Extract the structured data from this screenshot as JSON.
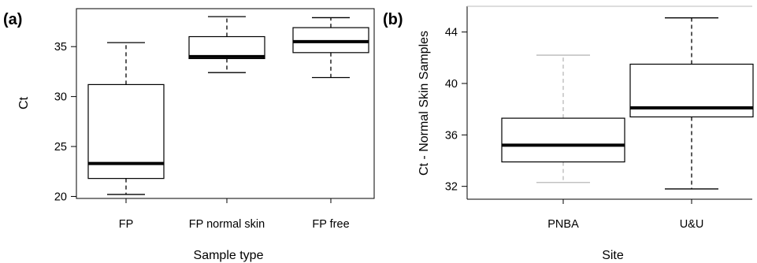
{
  "chart_data": [
    {
      "type": "boxplot",
      "panel_label": "(a)",
      "xlabel": "Sample type",
      "ylabel": "Ct",
      "ylim": [
        19.8,
        38.8
      ],
      "yticks": [
        20,
        25,
        30,
        35
      ],
      "categories": [
        "FP",
        "FP normal skin",
        "FP free"
      ],
      "boxes": [
        {
          "category": "FP",
          "whisker_low": 20.2,
          "q1": 21.8,
          "median": 23.3,
          "q3": 31.2,
          "whisker_high": 35.4
        },
        {
          "category": "FP normal skin",
          "whisker_low": 32.4,
          "q1": 33.8,
          "median": 34.0,
          "q3": 36.0,
          "whisker_high": 38.0
        },
        {
          "category": "FP free",
          "whisker_low": 31.9,
          "q1": 34.4,
          "median": 35.5,
          "q3": 36.9,
          "whisker_high": 37.9
        }
      ]
    },
    {
      "type": "boxplot",
      "panel_label": "(b)",
      "xlabel": "Site",
      "ylabel": "Ct - Normal Skin Samples",
      "ylim": [
        31.0,
        46.0
      ],
      "yticks": [
        32,
        36,
        40,
        44
      ],
      "categories": [
        "PNBA",
        "U&U"
      ],
      "boxes": [
        {
          "category": "PNBA",
          "whisker_low": 32.3,
          "q1": 33.9,
          "median": 35.2,
          "q3": 37.3,
          "whisker_high": 42.2
        },
        {
          "category": "U&U",
          "whisker_low": 31.8,
          "q1": 37.4,
          "median": 38.1,
          "q3": 41.5,
          "whisker_high": 45.1
        }
      ]
    }
  ]
}
